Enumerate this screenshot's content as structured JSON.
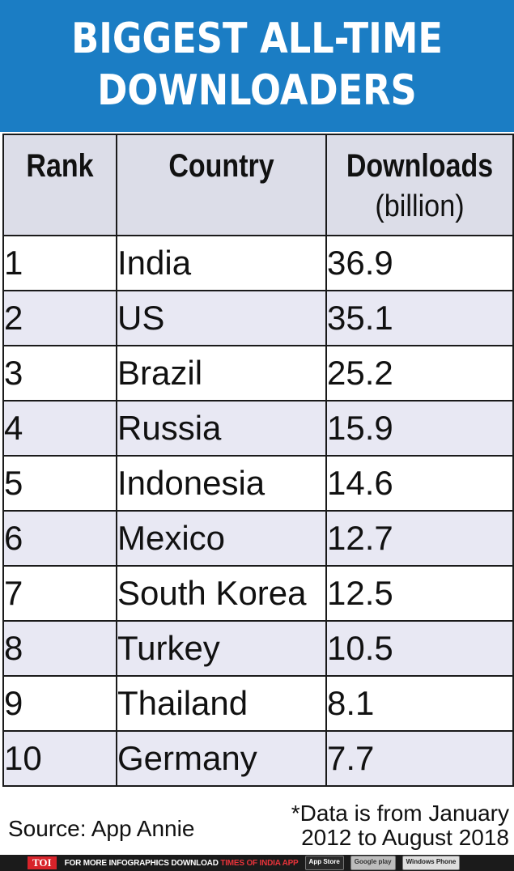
{
  "title": {
    "line1": "BIGGEST ALL-TIME",
    "line2": "DOWNLOADERS"
  },
  "chart_data": {
    "type": "table",
    "title": "BIGGEST ALL-TIME DOWNLOADERS",
    "columns": [
      {
        "label": "Rank",
        "sub": ""
      },
      {
        "label": "Country",
        "sub": ""
      },
      {
        "label": "Downloads",
        "sub": "(billion)"
      }
    ],
    "rows": [
      {
        "rank": "1",
        "country": "India",
        "downloads": "36.9"
      },
      {
        "rank": "2",
        "country": "US",
        "downloads": "35.1"
      },
      {
        "rank": "3",
        "country": "Brazil",
        "downloads": "25.2"
      },
      {
        "rank": "4",
        "country": "Russia",
        "downloads": "15.9"
      },
      {
        "rank": "5",
        "country": "Indonesia",
        "downloads": "14.6"
      },
      {
        "rank": "6",
        "country": "Mexico",
        "downloads": "12.7"
      },
      {
        "rank": "7",
        "country": "South Korea",
        "downloads": "12.5"
      },
      {
        "rank": "8",
        "country": "Turkey",
        "downloads": "10.5"
      },
      {
        "rank": "9",
        "country": "Thailand",
        "downloads": "8.1"
      },
      {
        "rank": "10",
        "country": "Germany",
        "downloads": "7.7"
      }
    ]
  },
  "source": "Source: App Annie",
  "note": {
    "line1": "*Data is from January",
    "line2": "2012 to August 2018"
  },
  "footer": {
    "logo": "TOI",
    "text_white": "FOR MORE  INFOGRAPHICS DOWNLOAD",
    "text_red": "TIMES OF INDIA  APP",
    "badges": [
      "App Store",
      "Google play",
      "Windows Phone"
    ]
  },
  "colors": {
    "banner": "#1b7dc4",
    "header_bg": "#dcdde8",
    "alt_row": "#e8e8f3",
    "footer_bg": "#1b1b1b",
    "toi_red": "#d8232a"
  }
}
